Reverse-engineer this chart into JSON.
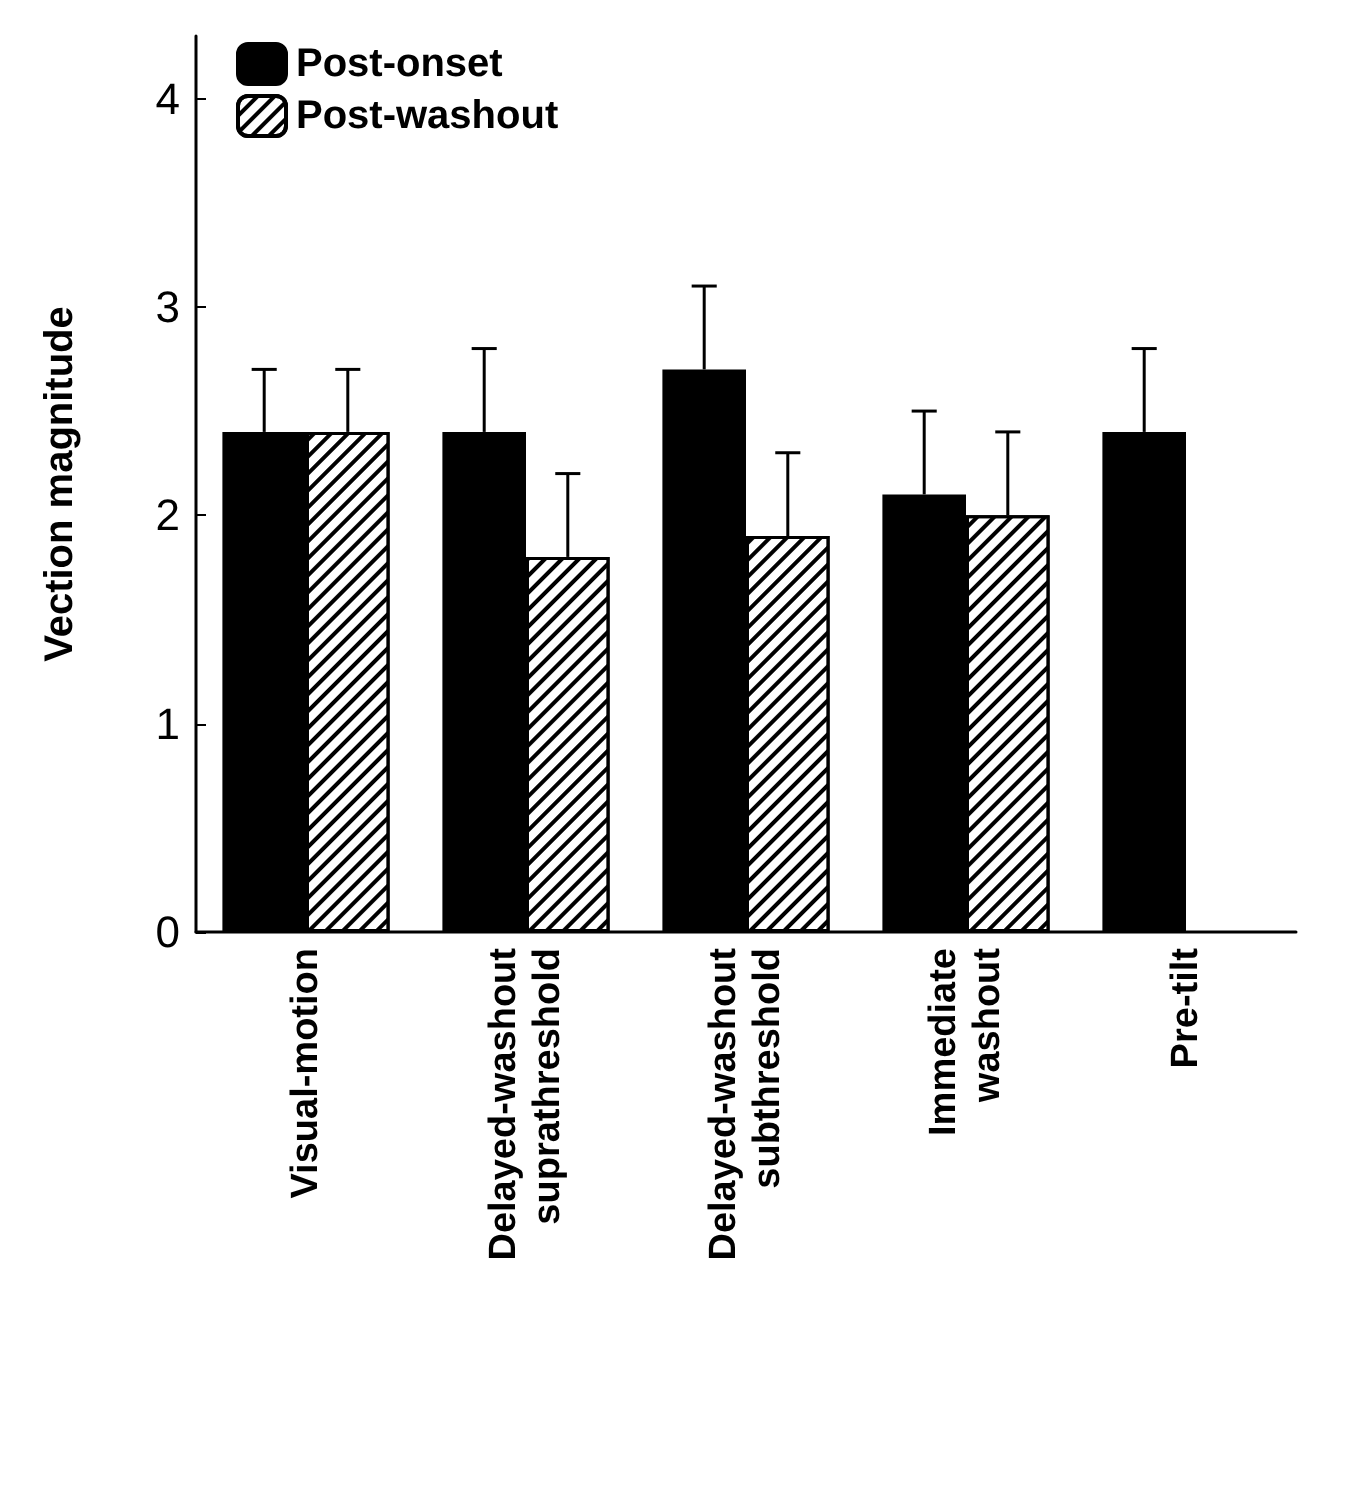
{
  "chart_data": {
    "type": "bar",
    "ylabel": "Vection magnitude",
    "categories": [
      "Visual-motion",
      "Delayed-washout\nsuprathreshold",
      "Delayed-washout\nsubthreshold",
      "Immediate\nwashout",
      "Pre-tilt"
    ],
    "series": [
      {
        "name": "Post-onset",
        "color": "#000000",
        "values": [
          2.4,
          2.4,
          2.7,
          2.1,
          2.4
        ],
        "errors": [
          [
            2.4,
            2.7
          ],
          [
            2.4,
            2.8
          ],
          [
            2.7,
            3.1
          ],
          [
            2.1,
            2.5
          ],
          [
            2.4,
            2.8
          ]
        ]
      },
      {
        "name": "Post-washout",
        "color": "#ffffff",
        "values": [
          2.4,
          1.8,
          1.9,
          2.0,
          null
        ],
        "errors": [
          [
            2.4,
            2.7
          ],
          [
            1.8,
            2.2
          ],
          [
            1.9,
            2.3
          ],
          [
            2.0,
            2.4
          ],
          null
        ]
      }
    ],
    "ylim": [
      0,
      4.3
    ],
    "yticks": [
      0,
      1,
      2,
      3,
      4
    ],
    "grid": false,
    "legend": "top left"
  }
}
